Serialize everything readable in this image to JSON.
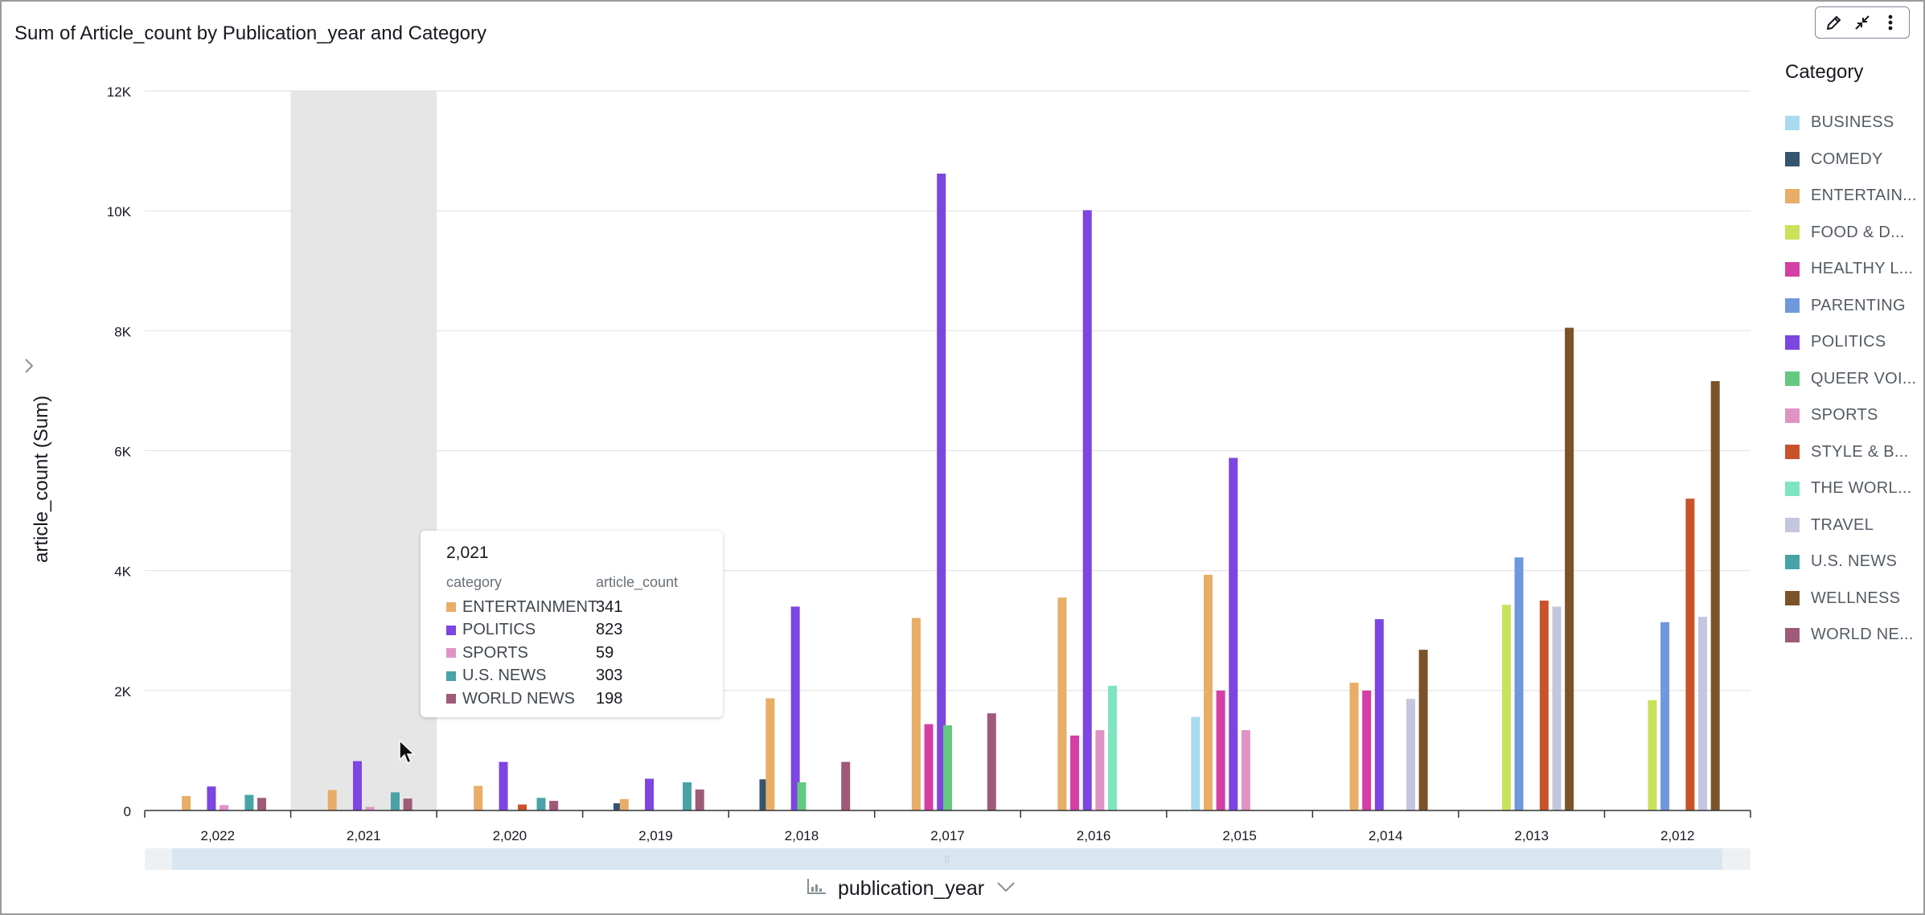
{
  "title": "Sum of Article_count by Publication_year and Category",
  "y_axis_title": "article_count (Sum)",
  "x_axis_title": "publication_year",
  "legend_title": "Category",
  "categories": [
    {
      "name": "BUSINESS",
      "label": "BUSINESS",
      "color": "#a9daf0"
    },
    {
      "name": "COMEDY",
      "label": "COMEDY",
      "color": "#34546f"
    },
    {
      "name": "ENTERTAINMENT",
      "label": "ENTERTAIN...",
      "color": "#e8ad67"
    },
    {
      "name": "FOOD & DRINK",
      "label": "FOOD & D...",
      "color": "#c8e35a"
    },
    {
      "name": "HEALTHY LIVING",
      "label": "HEALTHY L...",
      "color": "#d33fa4"
    },
    {
      "name": "PARENTING",
      "label": "PARENTING",
      "color": "#6f98dd"
    },
    {
      "name": "POLITICS",
      "label": "POLITICS",
      "color": "#7d45e1"
    },
    {
      "name": "QUEER VOICES",
      "label": "QUEER VOI...",
      "color": "#63c97e"
    },
    {
      "name": "SPORTS",
      "label": "SPORTS",
      "color": "#e094c6"
    },
    {
      "name": "STYLE & BEAUTY",
      "label": "STYLE & B...",
      "color": "#c9522b"
    },
    {
      "name": "THE WORLDPOST",
      "label": "THE WORL...",
      "color": "#7fe5c1"
    },
    {
      "name": "TRAVEL",
      "label": "TRAVEL",
      "color": "#c3c6de"
    },
    {
      "name": "U.S. NEWS",
      "label": "U.S. NEWS",
      "color": "#48a3a7"
    },
    {
      "name": "WELLNESS",
      "label": "WELLNESS",
      "color": "#7b532b"
    },
    {
      "name": "WORLD NEWS",
      "label": "WORLD NE...",
      "color": "#a05a79"
    }
  ],
  "tooltip": {
    "title": "2,021",
    "col_category": "category",
    "col_value": "article_count",
    "rows": [
      {
        "category": "ENTERTAINMENT",
        "value": "341",
        "color": "#e8ad67"
      },
      {
        "category": "POLITICS",
        "value": "823",
        "color": "#7d45e1"
      },
      {
        "category": "SPORTS",
        "value": "59",
        "color": "#e094c6"
      },
      {
        "category": "U.S. NEWS",
        "value": "303",
        "color": "#48a3a7"
      },
      {
        "category": "WORLD NEWS",
        "value": "198",
        "color": "#a05a79"
      }
    ]
  },
  "chart_data": {
    "type": "bar",
    "title": "Sum of Article_count by Publication_year and Category",
    "xlabel": "publication_year",
    "ylabel": "article_count (Sum)",
    "ylim": [
      0,
      12000
    ],
    "y_ticks": [
      "0",
      "2K",
      "4K",
      "6K",
      "8K",
      "10K",
      "12K"
    ],
    "grid": true,
    "legend_position": "right",
    "highlighted_category": "2,021",
    "categories": [
      "2,022",
      "2,021",
      "2,020",
      "2,019",
      "2,018",
      "2,017",
      "2,016",
      "2,015",
      "2,014",
      "2,013",
      "2,012"
    ],
    "series": [
      {
        "name": "BUSINESS",
        "values": [
          null,
          null,
          null,
          null,
          null,
          null,
          null,
          1560,
          null,
          null,
          null
        ]
      },
      {
        "name": "COMEDY",
        "values": [
          null,
          null,
          null,
          120,
          520,
          null,
          null,
          null,
          null,
          null,
          null
        ]
      },
      {
        "name": "ENTERTAINMENT",
        "values": [
          240,
          341,
          410,
          190,
          1870,
          3210,
          3550,
          3930,
          2130,
          null,
          null
        ]
      },
      {
        "name": "FOOD & DRINK",
        "values": [
          null,
          null,
          null,
          null,
          null,
          null,
          null,
          null,
          null,
          3430,
          1840
        ]
      },
      {
        "name": "HEALTHY LIVING",
        "values": [
          null,
          null,
          null,
          null,
          null,
          1440,
          1250,
          2000,
          2000,
          null,
          null
        ]
      },
      {
        "name": "PARENTING",
        "values": [
          null,
          null,
          null,
          null,
          null,
          null,
          null,
          null,
          null,
          4220,
          3140
        ]
      },
      {
        "name": "POLITICS",
        "values": [
          400,
          823,
          810,
          530,
          3400,
          10620,
          10010,
          5880,
          3190,
          null,
          null
        ]
      },
      {
        "name": "QUEER VOICES",
        "values": [
          null,
          null,
          null,
          null,
          470,
          1420,
          null,
          null,
          null,
          null,
          null
        ]
      },
      {
        "name": "SPORTS",
        "values": [
          90,
          59,
          null,
          null,
          null,
          null,
          1340,
          1340,
          null,
          null,
          null
        ]
      },
      {
        "name": "STYLE & BEAUTY",
        "values": [
          null,
          null,
          100,
          null,
          null,
          null,
          null,
          null,
          null,
          3500,
          5200
        ]
      },
      {
        "name": "THE WORLDPOST",
        "values": [
          null,
          null,
          null,
          null,
          null,
          null,
          2080,
          null,
          null,
          null,
          null
        ]
      },
      {
        "name": "TRAVEL",
        "values": [
          null,
          null,
          null,
          null,
          null,
          null,
          null,
          null,
          1860,
          3400,
          3230
        ]
      },
      {
        "name": "U.S. NEWS",
        "values": [
          260,
          303,
          210,
          470,
          null,
          null,
          null,
          null,
          null,
          null,
          null
        ]
      },
      {
        "name": "WELLNESS",
        "values": [
          null,
          null,
          null,
          null,
          null,
          null,
          null,
          null,
          2680,
          8050,
          7160
        ]
      },
      {
        "name": "WORLD NEWS",
        "values": [
          210,
          198,
          160,
          350,
          810,
          1620,
          null,
          null,
          null,
          null,
          null
        ]
      }
    ]
  }
}
